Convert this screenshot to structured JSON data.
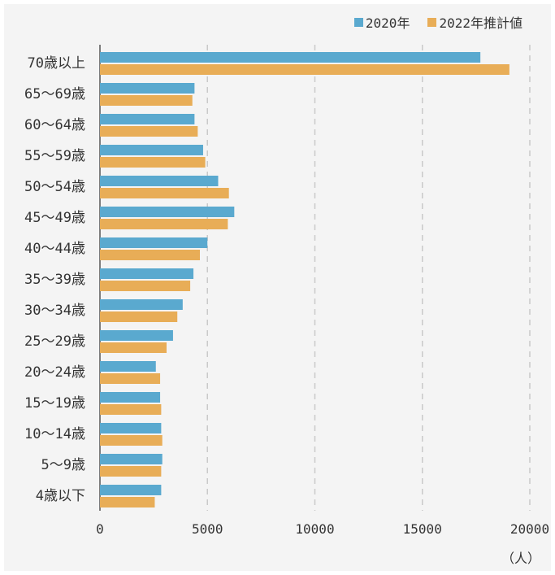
{
  "colors": {
    "series_2020": "#5aa9cf",
    "series_2022": "#e8ad57",
    "grid": "#c9c9c9",
    "axis": "#555555",
    "panel": "#f4f4f4"
  },
  "chart_data": {
    "type": "bar",
    "orientation": "horizontal",
    "categories": [
      "70歳以上",
      "65〜69歳",
      "60〜64歳",
      "55〜59歳",
      "50〜54歳",
      "45〜49歳",
      "40〜44歳",
      "35〜39歳",
      "30〜34歳",
      "25〜29歳",
      "20〜24歳",
      "15〜19歳",
      "10〜14歳",
      "5〜9歳",
      "4歳以下"
    ],
    "series": [
      {
        "name": "2020年",
        "values": [
          17700,
          4400,
          4400,
          4800,
          5500,
          6250,
          5000,
          4350,
          3850,
          3400,
          2600,
          2800,
          2850,
          2900,
          2850
        ]
      },
      {
        "name": "2022年推計値",
        "values": [
          19050,
          4300,
          4550,
          4900,
          6000,
          5950,
          4650,
          4200,
          3600,
          3100,
          2800,
          2850,
          2900,
          2850,
          2550
        ]
      }
    ],
    "xlim": [
      0,
      20000
    ],
    "xticks": [
      "0",
      "5000",
      "10000",
      "15000",
      "20000"
    ],
    "x_unit": "（人）",
    "grid": "vertical dashed",
    "legend_position": "top-right"
  }
}
